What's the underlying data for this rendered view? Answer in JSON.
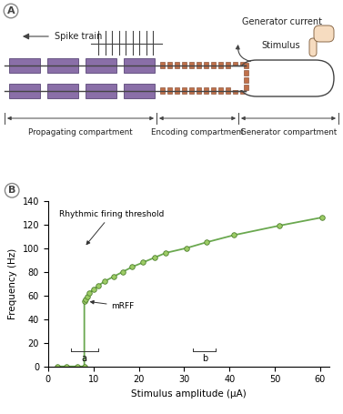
{
  "panel_a": {
    "label": "A",
    "texts": {
      "spike_train": "Spike train",
      "generator_current": "Generator current",
      "stimulus": "Stimulus",
      "propagating": "Propagating compartment",
      "encoding": "Encoding compartment",
      "generator": "Generator compartment"
    }
  },
  "chart_data": {
    "panel_label": "B",
    "type": "line",
    "x": [
      2,
      4,
      6.5,
      8,
      8,
      8.3,
      8.6,
      9,
      10,
      11,
      12.5,
      14.5,
      16.5,
      18.5,
      21,
      23.5,
      26,
      30.5,
      35,
      41,
      51,
      60.5
    ],
    "values": [
      0,
      0,
      0,
      0,
      55,
      57,
      59,
      62,
      65,
      68,
      72,
      76,
      80,
      84,
      88,
      92,
      96,
      100,
      105,
      111,
      119,
      126
    ],
    "color": "#6aa84f",
    "marker": "o",
    "xlabel": "Stimulus amplitude (µA)",
    "ylabel": "Frequency (Hz)",
    "xlim": [
      0,
      62
    ],
    "xticks": [
      0,
      10,
      20,
      30,
      40,
      50,
      60
    ],
    "ylim": [
      0,
      140
    ],
    "yticks": [
      0,
      20,
      40,
      60,
      80,
      100,
      120,
      140
    ],
    "annotations": {
      "threshold": "Rhythmic firing threshold",
      "mrff": "mRFF"
    },
    "brackets": [
      {
        "label": "a",
        "x": [
          5,
          11
        ]
      },
      {
        "label": "b",
        "x": [
          32,
          37
        ]
      }
    ]
  }
}
